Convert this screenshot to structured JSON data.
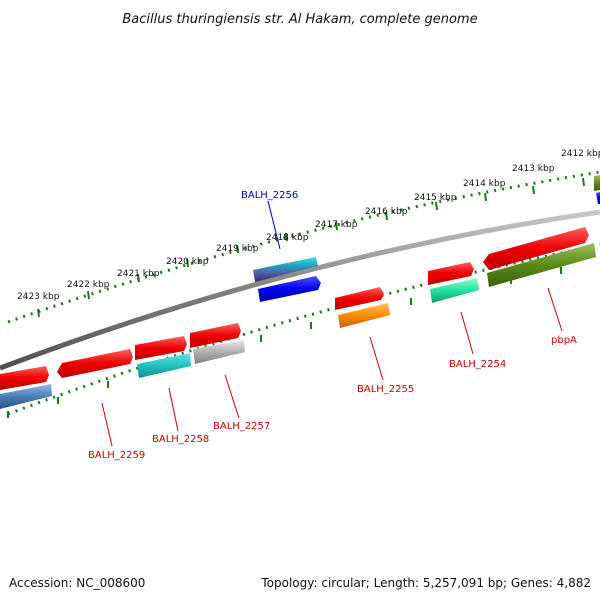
{
  "title": "Bacillus thuringiensis str. Al Hakam, complete genome",
  "footer": {
    "accession": "Accession: NC_008600",
    "topology": "Topology: circular; Length: 5,257,091 bp; Genes: 4,882"
  },
  "ticks": [
    "2423 kbp",
    "2422 kbp",
    "2421 kbp",
    "2420 kbp",
    "2419 kbp",
    "2418 kbp",
    "2417 kbp",
    "2416 kbp",
    "2415 kbp",
    "2414 kbp",
    "2413 kbp",
    "2412 kbp"
  ],
  "gene_labels": [
    {
      "id": "balh-2256",
      "text": "BALH_2256",
      "color": "#0000cc"
    },
    {
      "id": "balh-2255",
      "text": "BALH_2255",
      "color": "#cc0000"
    },
    {
      "id": "balh-2254",
      "text": "BALH_2254",
      "color": "#cc0000"
    },
    {
      "id": "pbpa",
      "text": "pbpA",
      "color": "#cc0000"
    },
    {
      "id": "balh-2259",
      "text": "BALH_2259",
      "color": "#cc0000"
    },
    {
      "id": "balh-2258",
      "text": "BALH_2258",
      "color": "#cc0000"
    },
    {
      "id": "balh-2257",
      "text": "BALH_2257",
      "color": "#cc0000"
    }
  ],
  "colors": {
    "backbone": "#808080",
    "tick_dots": "#1a7a1a",
    "red": "#ee0000",
    "blue": "#0000ee",
    "teal": "#20c0c0",
    "orange": "#ff8c00",
    "mint": "#20e0a0",
    "olive": "#5a8a1a",
    "grey": "#b0b0b0",
    "steel": "#4a80b8",
    "slate": "#5060a0"
  }
}
